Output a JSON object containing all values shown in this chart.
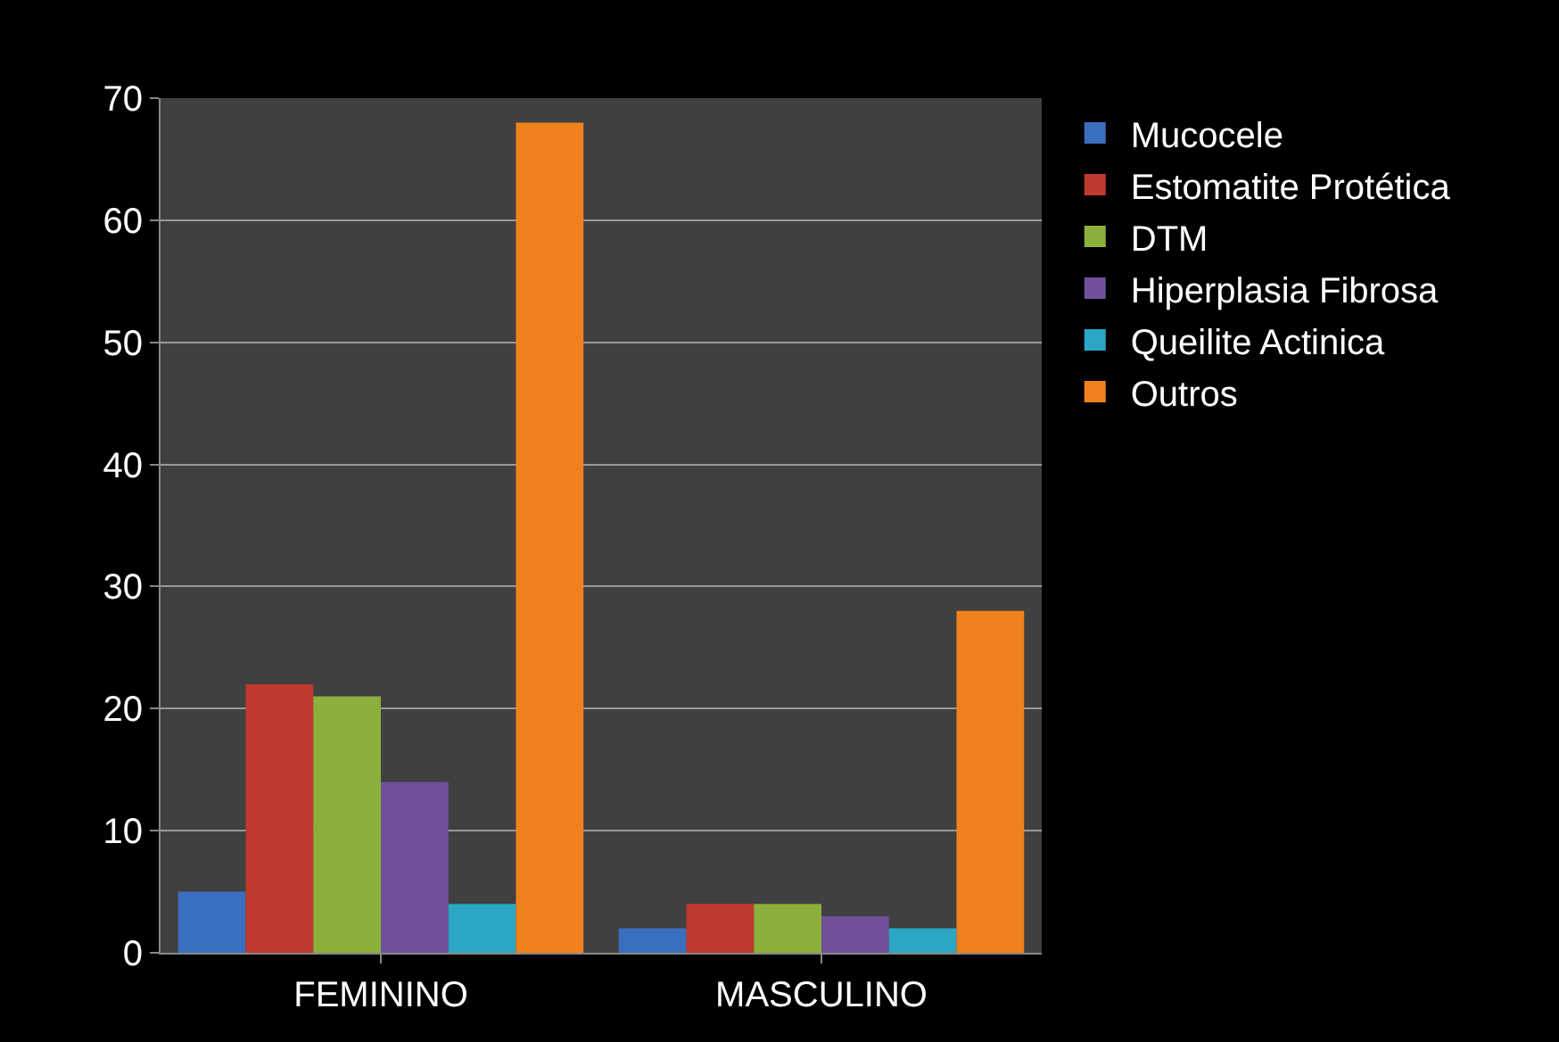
{
  "chart_data": {
    "type": "bar",
    "categories": [
      "FEMININO",
      "MASCULINO"
    ],
    "series": [
      {
        "name": "Mucocele",
        "color": "#3a6fc0",
        "values": [
          5,
          2
        ]
      },
      {
        "name": "Estomatite Protética",
        "color": "#c0392f",
        "values": [
          22,
          4
        ]
      },
      {
        "name": "DTM",
        "color": "#8cb03c",
        "values": [
          21,
          4
        ]
      },
      {
        "name": "Hiperplasia Fibrosa",
        "color": "#71509c",
        "values": [
          14,
          3
        ]
      },
      {
        "name": "Queilite Actinica",
        "color": "#2ba6c4",
        "values": [
          4,
          2
        ]
      },
      {
        "name": "Outros",
        "color": "#f0821e",
        "values": [
          68,
          28
        ]
      }
    ],
    "ylim": [
      0,
      70
    ],
    "yticks": [
      0,
      10,
      20,
      30,
      40,
      50,
      60,
      70
    ],
    "grid": "y",
    "legend": "right"
  }
}
